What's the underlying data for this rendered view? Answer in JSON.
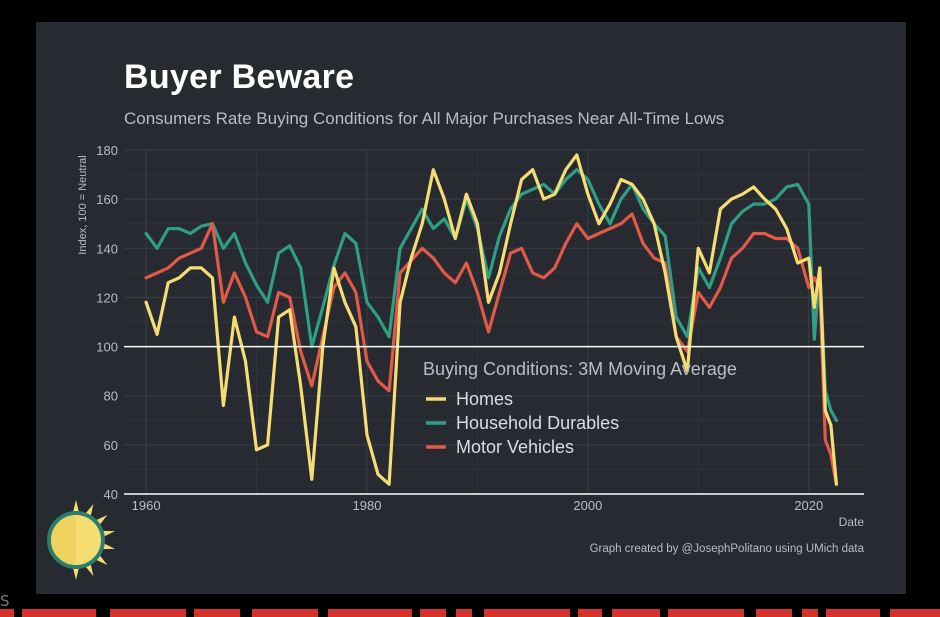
{
  "colors": {
    "background": "#272a31",
    "grid": "#3a3e46",
    "text": "#b9bdc4",
    "title": "#ffffff",
    "homes": "#f5dd73",
    "durables": "#2e9e86",
    "vehicles": "#e05a47",
    "strip": "#d4322a",
    "sun": "#f5dd73"
  },
  "icons": {
    "logo": "sun-icon"
  },
  "stray_text": "S",
  "chart_data": {
    "type": "line",
    "title": "Buyer Beware",
    "subtitle": "Consumers Rate Buying Conditions for All Major Purchases Near All-Time Lows",
    "xlabel": "Date",
    "ylabel": "Index, 100 = Neutral",
    "xlim": [
      1958,
      2025
    ],
    "ylim": [
      40,
      180
    ],
    "xticks": [
      1960,
      1980,
      2000,
      2020
    ],
    "yticks": [
      40,
      60,
      80,
      100,
      120,
      140,
      160,
      180
    ],
    "reference_line": 100,
    "legend": {
      "title": "Buying Conditions: 3M Moving Average",
      "placement": "center"
    },
    "caption": "Graph created by @JosephPolitano using UMich data",
    "grid": true,
    "series": [
      {
        "name": "Household Durables",
        "color": "#2e9e86",
        "x": [
          1960.0,
          1961.0,
          1962.0,
          1963.0,
          1964.0,
          1965.0,
          1966.0,
          1967.0,
          1968.0,
          1969.0,
          1970.0,
          1971.0,
          1972.0,
          1973.0,
          1974.0,
          1975.0,
          1976.0,
          1977.0,
          1978.0,
          1979.0,
          1980.0,
          1981.0,
          1982.0,
          1983.0,
          1984.0,
          1985.0,
          1986.0,
          1987.0,
          1988.0,
          1989.0,
          1990.0,
          1991.0,
          1992.0,
          1993.0,
          1994.0,
          1995.0,
          1996.0,
          1997.0,
          1998.0,
          1999.0,
          2000.0,
          2001.0,
          2002.0,
          2003.0,
          2004.0,
          2005.0,
          2006.0,
          2007.0,
          2008.0,
          2009.0,
          2010.0,
          2011.0,
          2012.0,
          2013.0,
          2014.0,
          2015.0,
          2016.0,
          2017.0,
          2018.0,
          2019.0,
          2020.0,
          2020.5,
          2021.0,
          2021.5,
          2022.0,
          2022.5
        ],
        "values": [
          146,
          140,
          148,
          148,
          146,
          149,
          150,
          140,
          146,
          134,
          125,
          118,
          138,
          141,
          132,
          100,
          116,
          133,
          146,
          142,
          118,
          112,
          104,
          140,
          148,
          156,
          148,
          152,
          144,
          160,
          148,
          128,
          145,
          156,
          162,
          164,
          166,
          162,
          168,
          172,
          168,
          158,
          150,
          160,
          166,
          156,
          150,
          145,
          112,
          104,
          132,
          124,
          136,
          150,
          155,
          158,
          158,
          160,
          165,
          166,
          158,
          103,
          132,
          82,
          74,
          70
        ]
      },
      {
        "name": "Motor Vehicles",
        "color": "#e05a47",
        "x": [
          1960.0,
          1961.0,
          1962.0,
          1963.0,
          1964.0,
          1965.0,
          1966.0,
          1967.0,
          1968.0,
          1969.0,
          1970.0,
          1971.0,
          1972.0,
          1973.0,
          1974.0,
          1975.0,
          1976.0,
          1977.0,
          1978.0,
          1979.0,
          1980.0,
          1981.0,
          1982.0,
          1983.0,
          1984.0,
          1985.0,
          1986.0,
          1987.0,
          1988.0,
          1989.0,
          1990.0,
          1991.0,
          1992.0,
          1993.0,
          1994.0,
          1995.0,
          1996.0,
          1997.0,
          1998.0,
          1999.0,
          2000.0,
          2001.0,
          2002.0,
          2003.0,
          2004.0,
          2005.0,
          2006.0,
          2007.0,
          2008.0,
          2009.0,
          2010.0,
          2011.0,
          2012.0,
          2013.0,
          2014.0,
          2015.0,
          2016.0,
          2017.0,
          2018.0,
          2019.0,
          2020.0,
          2020.5,
          2021.0,
          2021.5,
          2022.0,
          2022.5
        ],
        "values": [
          128,
          130,
          132,
          136,
          138,
          140,
          150,
          118,
          130,
          120,
          106,
          104,
          122,
          120,
          98,
          84,
          104,
          124,
          130,
          122,
          94,
          86,
          82,
          130,
          135,
          140,
          136,
          130,
          126,
          134,
          122,
          106,
          122,
          138,
          140,
          130,
          128,
          132,
          142,
          150,
          144,
          146,
          148,
          150,
          154,
          142,
          136,
          134,
          104,
          98,
          122,
          116,
          124,
          136,
          140,
          146,
          146,
          144,
          144,
          140,
          124,
          128,
          124,
          62,
          56,
          44
        ]
      },
      {
        "name": "Homes",
        "color": "#f5dd73",
        "x": [
          1960.0,
          1961.0,
          1962.0,
          1963.0,
          1964.0,
          1965.0,
          1966.0,
          1967.0,
          1968.0,
          1969.0,
          1970.0,
          1971.0,
          1972.0,
          1973.0,
          1974.0,
          1975.0,
          1976.0,
          1977.0,
          1978.0,
          1979.0,
          1980.0,
          1981.0,
          1982.0,
          1983.0,
          1984.0,
          1985.0,
          1986.0,
          1987.0,
          1988.0,
          1989.0,
          1990.0,
          1991.0,
          1992.0,
          1993.0,
          1994.0,
          1995.0,
          1996.0,
          1997.0,
          1998.0,
          1999.0,
          2000.0,
          2001.0,
          2002.0,
          2003.0,
          2004.0,
          2005.0,
          2006.0,
          2007.0,
          2008.0,
          2009.0,
          2010.0,
          2011.0,
          2012.0,
          2013.0,
          2014.0,
          2015.0,
          2016.0,
          2017.0,
          2018.0,
          2019.0,
          2020.0,
          2020.5,
          2021.0,
          2021.5,
          2022.0,
          2022.5
        ],
        "values": [
          118,
          105,
          126,
          128,
          132,
          132,
          128,
          76,
          112,
          94,
          58,
          60,
          112,
          115,
          84,
          46,
          100,
          132,
          118,
          108,
          64,
          48,
          44,
          118,
          136,
          150,
          172,
          160,
          144,
          162,
          150,
          118,
          130,
          150,
          168,
          172,
          160,
          162,
          172,
          178,
          162,
          150,
          158,
          168,
          166,
          160,
          150,
          130,
          104,
          90,
          140,
          130,
          156,
          160,
          162,
          165,
          160,
          156,
          148,
          134,
          136,
          116,
          132,
          74,
          68,
          44
        ]
      }
    ]
  }
}
